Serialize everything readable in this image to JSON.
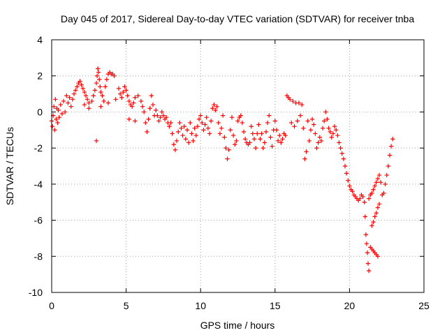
{
  "chart_data": {
    "type": "scatter",
    "title": "Day 045 of 2017, Sidereal Day-to-day VTEC variation (SDTVAR) for receiver tnba",
    "xlabel": "GPS time / hours",
    "ylabel": "SDTVAR / TECUs",
    "xlim": [
      0,
      25
    ],
    "ylim": [
      -10,
      4
    ],
    "xticks": [
      0,
      5,
      10,
      15,
      20,
      25
    ],
    "yticks": [
      4,
      2,
      0,
      -2,
      -4,
      -6,
      -8,
      -10
    ],
    "grid": true,
    "marker": "+",
    "color": "#ff0000",
    "series": [
      {
        "name": "SDTVAR",
        "points": [
          [
            0.0,
            -0.5
          ],
          [
            0.05,
            -0.8
          ],
          [
            0.1,
            -0.2
          ],
          [
            0.15,
            0.3
          ],
          [
            0.2,
            -1.0
          ],
          [
            0.25,
            0.7
          ],
          [
            0.3,
            -0.4
          ],
          [
            0.35,
            0.2
          ],
          [
            0.4,
            -0.6
          ],
          [
            0.45,
            0.1
          ],
          [
            0.5,
            -0.3
          ],
          [
            0.6,
            0.4
          ],
          [
            0.7,
            -0.1
          ],
          [
            0.8,
            0.6
          ],
          [
            0.9,
            0.0
          ],
          [
            1.0,
            0.9
          ],
          [
            1.1,
            0.5
          ],
          [
            1.2,
            0.8
          ],
          [
            1.3,
            0.3
          ],
          [
            1.4,
            0.7
          ],
          [
            1.5,
            1.0
          ],
          [
            1.6,
            1.2
          ],
          [
            1.7,
            1.4
          ],
          [
            1.8,
            1.6
          ],
          [
            1.9,
            1.7
          ],
          [
            2.0,
            1.5
          ],
          [
            2.1,
            1.3
          ],
          [
            2.2,
            1.1
          ],
          [
            2.3,
            0.9
          ],
          [
            2.4,
            0.7
          ],
          [
            2.5,
            0.5
          ],
          [
            2.2,
            0.4
          ],
          [
            2.5,
            0.2
          ],
          [
            2.7,
            0.6
          ],
          [
            2.8,
            0.9
          ],
          [
            2.9,
            1.2
          ],
          [
            3.0,
            1.6
          ],
          [
            3.05,
            2.0
          ],
          [
            3.1,
            2.4
          ],
          [
            3.15,
            2.2
          ],
          [
            3.2,
            1.8
          ],
          [
            3.25,
            1.4
          ],
          [
            3.3,
            1.1
          ],
          [
            3.4,
            0.9
          ],
          [
            3.5,
            0.6
          ],
          [
            3.6,
            1.4
          ],
          [
            3.7,
            1.8
          ],
          [
            3.8,
            2.1
          ],
          [
            3.9,
            2.2
          ],
          [
            4.0,
            2.1
          ],
          [
            4.1,
            2.1
          ],
          [
            4.2,
            2.0
          ],
          [
            3.0,
            -1.6
          ],
          [
            3.3,
            0.3
          ],
          [
            3.8,
            0.5
          ],
          [
            4.3,
            0.7
          ],
          [
            4.5,
            1.3
          ],
          [
            4.6,
            1.0
          ],
          [
            4.7,
            0.8
          ],
          [
            4.8,
            1.1
          ],
          [
            4.9,
            1.4
          ],
          [
            5.0,
            1.2
          ],
          [
            5.1,
            0.9
          ],
          [
            5.2,
            0.6
          ],
          [
            5.3,
            0.4
          ],
          [
            5.4,
            0.3
          ],
          [
            5.5,
            0.5
          ],
          [
            5.6,
            0.8
          ],
          [
            5.2,
            -0.4
          ],
          [
            5.6,
            -0.5
          ],
          [
            5.8,
            0.9
          ],
          [
            6.0,
            0.6
          ],
          [
            6.1,
            0.3
          ],
          [
            6.2,
            0.0
          ],
          [
            6.3,
            -0.6
          ],
          [
            6.4,
            -1.1
          ],
          [
            6.5,
            -0.4
          ],
          [
            6.6,
            0.2
          ],
          [
            6.7,
            0.9
          ],
          [
            6.8,
            0.4
          ],
          [
            6.9,
            -0.2
          ],
          [
            7.0,
            0.1
          ],
          [
            7.1,
            -0.2
          ],
          [
            7.2,
            -0.5
          ],
          [
            7.3,
            -0.3
          ],
          [
            7.4,
            0.0
          ],
          [
            7.5,
            -0.2
          ],
          [
            7.6,
            -0.4
          ],
          [
            7.7,
            -0.3
          ],
          [
            7.8,
            -0.6
          ],
          [
            7.9,
            -0.8
          ],
          [
            8.0,
            -0.6
          ],
          [
            8.1,
            -1.2
          ],
          [
            8.2,
            -1.8
          ],
          [
            8.3,
            -2.1
          ],
          [
            8.4,
            -1.6
          ],
          [
            8.5,
            -1.1
          ],
          [
            8.6,
            -0.6
          ],
          [
            8.7,
            -0.9
          ],
          [
            8.8,
            -1.3
          ],
          [
            8.9,
            -0.8
          ],
          [
            9.0,
            -1.5
          ],
          [
            9.1,
            -1.0
          ],
          [
            9.2,
            -1.7
          ],
          [
            9.3,
            -0.6
          ],
          [
            9.4,
            -1.2
          ],
          [
            9.5,
            -1.6
          ],
          [
            9.6,
            -0.9
          ],
          [
            9.7,
            -1.3
          ],
          [
            9.8,
            -0.8
          ],
          [
            9.9,
            -0.4
          ],
          [
            10.0,
            -0.2
          ],
          [
            10.1,
            -0.6
          ],
          [
            10.2,
            -1.0
          ],
          [
            10.3,
            -0.7
          ],
          [
            10.4,
            -0.3
          ],
          [
            10.5,
            -0.9
          ],
          [
            10.6,
            -1.2
          ],
          [
            10.7,
            -0.5
          ],
          [
            10.8,
            0.2
          ],
          [
            10.9,
            0.4
          ],
          [
            11.0,
            0.1
          ],
          [
            11.1,
            0.3
          ],
          [
            11.2,
            -0.6
          ],
          [
            11.3,
            -1.2
          ],
          [
            11.4,
            -0.9
          ],
          [
            11.5,
            -0.2
          ],
          [
            11.6,
            -1.4
          ],
          [
            11.7,
            -2.0
          ],
          [
            11.8,
            -2.6
          ],
          [
            11.9,
            -2.1
          ],
          [
            12.0,
            -1.0
          ],
          [
            12.1,
            -0.3
          ],
          [
            12.2,
            -1.3
          ],
          [
            12.3,
            -1.8
          ],
          [
            12.4,
            -1.6
          ],
          [
            12.5,
            -0.5
          ],
          [
            12.6,
            -0.3
          ],
          [
            12.7,
            -0.2
          ],
          [
            12.8,
            -0.6
          ],
          [
            12.9,
            -1.1
          ],
          [
            13.0,
            -1.5
          ],
          [
            13.1,
            -1.7
          ],
          [
            13.2,
            -1.8
          ],
          [
            13.3,
            -1.7
          ],
          [
            13.4,
            -0.8
          ],
          [
            13.5,
            -1.2
          ],
          [
            13.6,
            -1.5
          ],
          [
            13.7,
            -2.0
          ],
          [
            13.8,
            -1.2
          ],
          [
            13.9,
            -0.7
          ],
          [
            14.0,
            -1.5
          ],
          [
            14.1,
            -1.2
          ],
          [
            14.2,
            -2.0
          ],
          [
            14.3,
            -1.7
          ],
          [
            14.4,
            -1.1
          ],
          [
            14.5,
            -0.6
          ],
          [
            14.6,
            -0.2
          ],
          [
            14.7,
            -1.4
          ],
          [
            14.8,
            -1.9
          ],
          [
            14.9,
            -1.0
          ],
          [
            15.0,
            -0.5
          ],
          [
            15.1,
            -1.0
          ],
          [
            15.2,
            -1.6
          ],
          [
            15.3,
            -1.3
          ],
          [
            15.4,
            -1.7
          ],
          [
            15.5,
            -1.5
          ],
          [
            15.6,
            -1.2
          ],
          [
            15.7,
            -1.3
          ],
          [
            15.8,
            0.9
          ],
          [
            15.9,
            0.8
          ],
          [
            16.0,
            0.7
          ],
          [
            16.1,
            -0.6
          ],
          [
            16.2,
            0.6
          ],
          [
            16.3,
            -0.8
          ],
          [
            16.4,
            0.5
          ],
          [
            16.5,
            -0.5
          ],
          [
            16.6,
            0.5
          ],
          [
            16.7,
            -0.2
          ],
          [
            16.8,
            0.4
          ],
          [
            16.9,
            -0.9
          ],
          [
            17.0,
            -2.6
          ],
          [
            17.1,
            -2.2
          ],
          [
            17.2,
            -0.5
          ],
          [
            17.3,
            -1.6
          ],
          [
            17.4,
            -1.0
          ],
          [
            17.5,
            -0.4
          ],
          [
            17.6,
            -0.7
          ],
          [
            17.7,
            -1.2
          ],
          [
            17.8,
            -2.0
          ],
          [
            17.9,
            -1.7
          ],
          [
            18.0,
            -1.4
          ],
          [
            18.1,
            -1.6
          ],
          [
            18.2,
            -0.9
          ],
          [
            18.3,
            -0.5
          ],
          [
            18.4,
            0.0
          ],
          [
            18.5,
            -0.4
          ],
          [
            18.6,
            -0.9
          ],
          [
            18.7,
            -1.1
          ],
          [
            18.8,
            -1.4
          ],
          [
            18.9,
            -1.2
          ],
          [
            19.0,
            -0.8
          ],
          [
            19.1,
            -1.0
          ],
          [
            19.2,
            -1.3
          ],
          [
            19.3,
            -1.7
          ],
          [
            19.4,
            -2.0
          ],
          [
            19.5,
            -2.3
          ],
          [
            19.6,
            -2.6
          ],
          [
            19.7,
            -3.0
          ],
          [
            19.8,
            -3.4
          ],
          [
            19.9,
            -3.8
          ],
          [
            20.0,
            -4.1
          ],
          [
            20.1,
            -4.3
          ],
          [
            20.2,
            -4.4
          ],
          [
            20.3,
            -4.6
          ],
          [
            20.4,
            -4.7
          ],
          [
            20.5,
            -4.8
          ],
          [
            20.6,
            -4.9
          ],
          [
            20.7,
            -4.8
          ],
          [
            20.8,
            -4.6
          ],
          [
            20.9,
            -4.7
          ],
          [
            21.0,
            -5.0
          ],
          [
            21.05,
            -5.8
          ],
          [
            21.1,
            -6.8
          ],
          [
            21.15,
            -7.3
          ],
          [
            21.2,
            -7.8
          ],
          [
            21.25,
            -8.4
          ],
          [
            21.3,
            -8.8
          ],
          [
            21.4,
            -7.5
          ],
          [
            21.5,
            -7.6
          ],
          [
            21.6,
            -7.7
          ],
          [
            21.7,
            -7.8
          ],
          [
            21.8,
            -7.9
          ],
          [
            21.9,
            -8.0
          ],
          [
            21.5,
            -6.3
          ],
          [
            21.6,
            -6.1
          ],
          [
            21.7,
            -5.8
          ],
          [
            21.8,
            -5.6
          ],
          [
            21.9,
            -5.3
          ],
          [
            22.0,
            -5.1
          ],
          [
            21.3,
            -4.8
          ],
          [
            21.4,
            -4.6
          ],
          [
            21.5,
            -4.5
          ],
          [
            21.6,
            -4.3
          ],
          [
            21.7,
            -4.1
          ],
          [
            21.8,
            -3.9
          ],
          [
            21.9,
            -3.7
          ],
          [
            22.0,
            -3.5
          ],
          [
            22.1,
            -3.9
          ],
          [
            22.2,
            -4.6
          ],
          [
            22.3,
            -4.5
          ],
          [
            22.4,
            -4.0
          ],
          [
            22.5,
            -3.5
          ],
          [
            22.6,
            -3.0
          ],
          [
            22.7,
            -2.4
          ],
          [
            22.8,
            -1.9
          ],
          [
            22.9,
            -1.5
          ]
        ]
      }
    ]
  }
}
